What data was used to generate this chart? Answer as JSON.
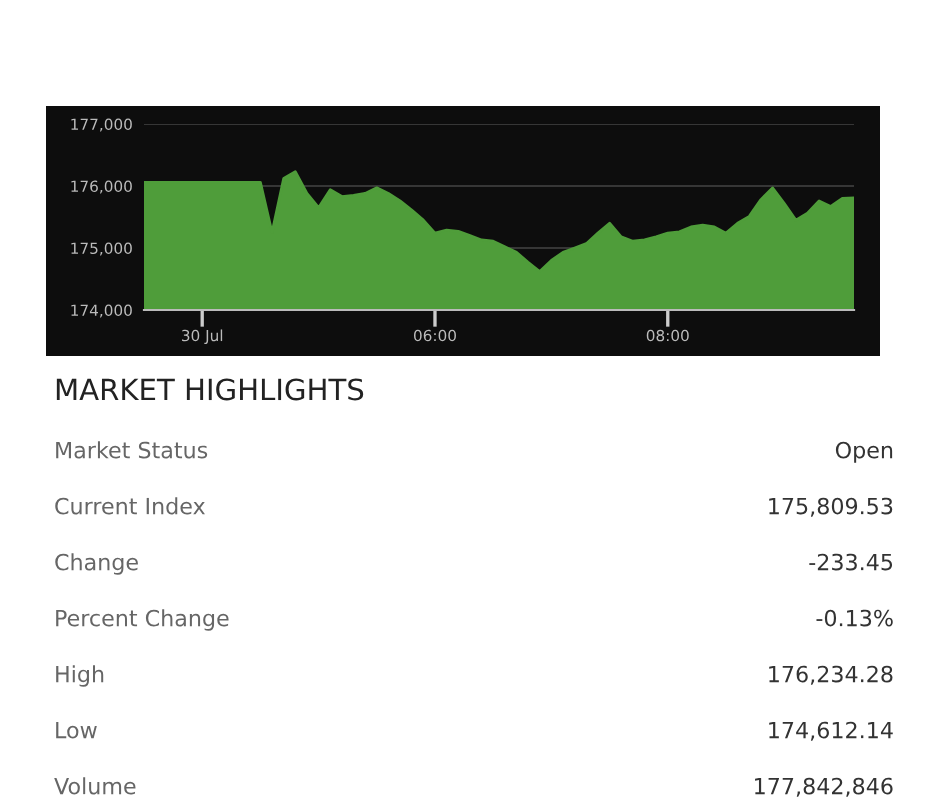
{
  "chart_data": [
    {
      "type": "area",
      "color": "#4f9d3a",
      "ylim": [
        174000,
        177000
      ],
      "yticks": [
        {
          "value": 174000,
          "label": "174,000"
        },
        {
          "value": 175000,
          "label": "175,000"
        },
        {
          "value": 176000,
          "label": "176,000"
        },
        {
          "value": 177000,
          "label": "177,000"
        }
      ],
      "grid": "y",
      "categories": [
        null,
        null,
        null,
        null,
        null,
        "30 Jul",
        null,
        null,
        null,
        null,
        null,
        null,
        null,
        null,
        null,
        null,
        null,
        null,
        null,
        null,
        null,
        null,
        null,
        null,
        null,
        "06:00",
        null,
        null,
        null,
        null,
        null,
        null,
        null,
        null,
        null,
        null,
        null,
        null,
        null,
        null,
        null,
        null,
        null,
        null,
        null,
        "08:00",
        null,
        null,
        null,
        null,
        null,
        null,
        null,
        null,
        null,
        null,
        null,
        null,
        null,
        null,
        null,
        null
      ],
      "values": [
        176060,
        176060,
        176060,
        176060,
        176060,
        176060,
        176060,
        176060,
        176060,
        176060,
        176060,
        175250,
        176120,
        176230,
        175880,
        175650,
        175940,
        175830,
        175850,
        175880,
        175970,
        175880,
        175760,
        175610,
        175450,
        175240,
        175290,
        175270,
        175200,
        175130,
        175110,
        175020,
        174930,
        174770,
        174620,
        174800,
        174930,
        175000,
        175070,
        175240,
        175400,
        175180,
        175110,
        175130,
        175180,
        175240,
        175260,
        175340,
        175370,
        175340,
        175240,
        175400,
        175510,
        175780,
        175970,
        175720,
        175450,
        175560,
        175760,
        175670,
        175800,
        175810
      ]
    },
    {
      "type": "other",
      "title": "MARKET HIGHLIGHTS",
      "annotations": [
        "Market Status",
        "Open",
        "Current Index",
        "175,809.53",
        "Change",
        "-233.45",
        "Percent Change",
        "-0.13%",
        "High",
        "176,234.28",
        "Low",
        "174,612.14",
        "Volume",
        "177,842,846"
      ]
    }
  ]
}
